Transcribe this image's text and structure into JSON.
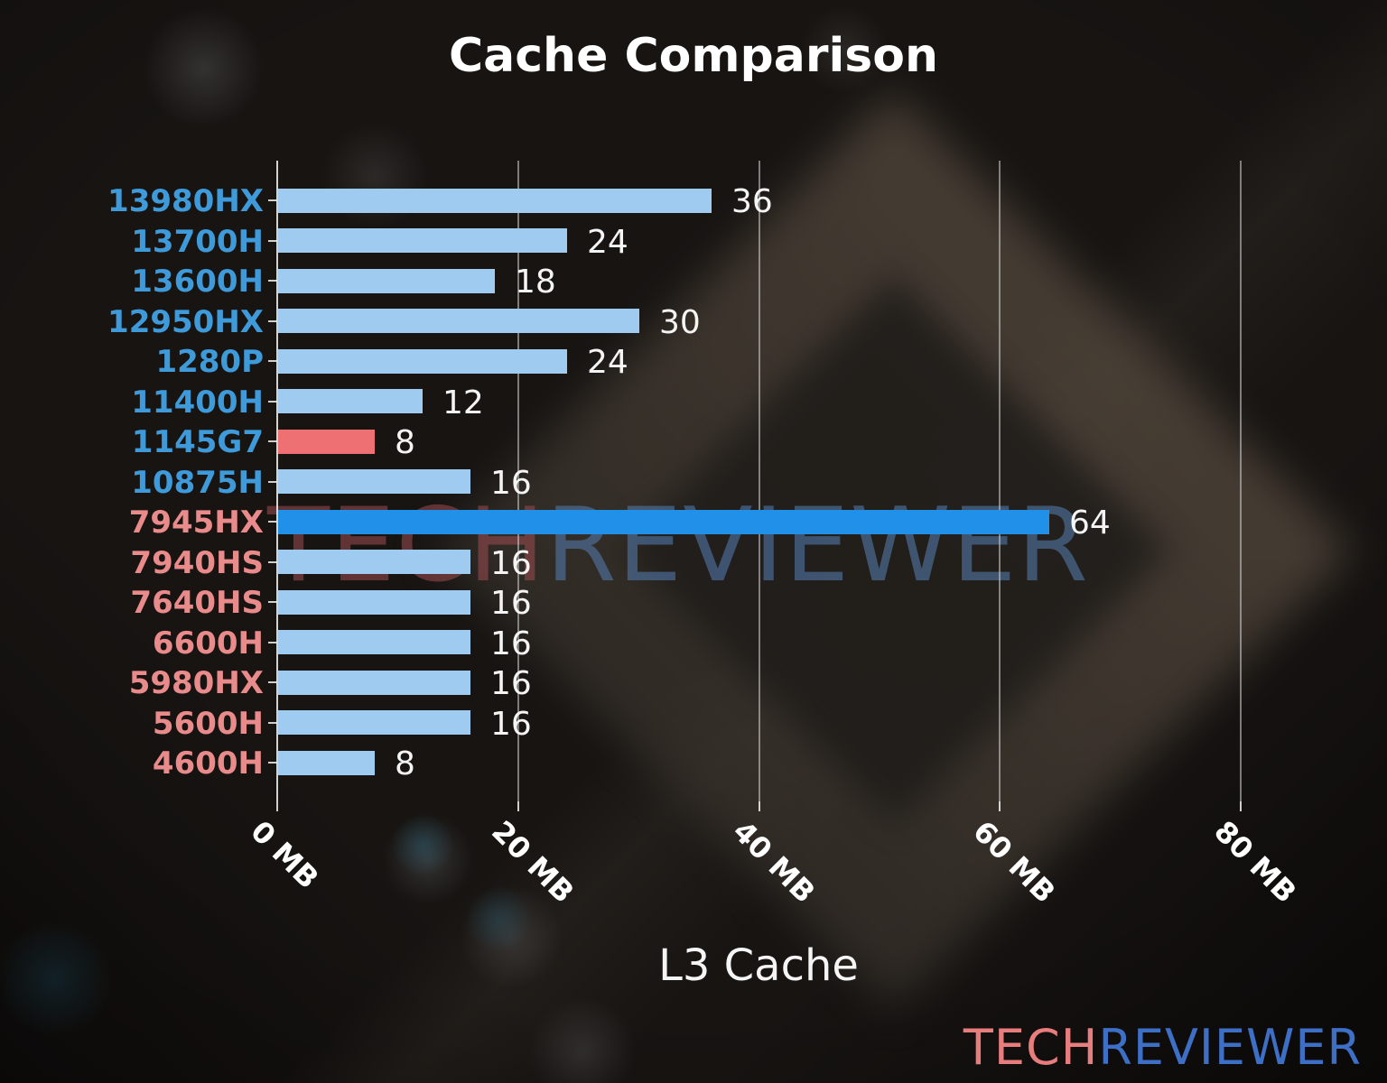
{
  "title": "Cache Comparison",
  "xaxis_title": "L3 Cache",
  "watermark": {
    "part1": "TECH",
    "part2": "REVIEWER"
  },
  "logo": {
    "part1": "TECH",
    "part2": "REVIEWER"
  },
  "colors": {
    "bar_normal": "#9fcbf0",
    "bar_highlight": "#2090e8",
    "bar_red": "#ee7072",
    "label_intel": "#3f9ad9",
    "label_amd": "#e98a8b",
    "value_text": "#f4f4f4",
    "grid": "rgba(212,212,212,0.55)"
  },
  "chart_data": {
    "type": "bar",
    "orientation": "horizontal",
    "title": "Cache Comparison",
    "xlabel": "L3 Cache",
    "unit": "MB",
    "grid": true,
    "legend": "none",
    "xlim": [
      0,
      85
    ],
    "x_tick_values": [
      0,
      20,
      40,
      60,
      80
    ],
    "x_tick_labels": [
      "0 MB",
      "20 MB",
      "40 MB",
      "60 MB",
      "80 MB"
    ],
    "categories": [
      "13980HX",
      "13700H",
      "13600H",
      "12950HX",
      "1280P",
      "11400H",
      "1145G7",
      "10875H",
      "7945HX",
      "7940HS",
      "7640HS",
      "6600H",
      "5980HX",
      "5600H",
      "4600H"
    ],
    "values": [
      36,
      24,
      18,
      30,
      24,
      12,
      8,
      16,
      64,
      16,
      16,
      16,
      16,
      16,
      8
    ],
    "bars": [
      {
        "label": "13980HX",
        "value": 36,
        "bar_color": "#9fcbf0",
        "label_color": "#3f9ad9"
      },
      {
        "label": "13700H",
        "value": 24,
        "bar_color": "#9fcbf0",
        "label_color": "#3f9ad9"
      },
      {
        "label": "13600H",
        "value": 18,
        "bar_color": "#9fcbf0",
        "label_color": "#3f9ad9"
      },
      {
        "label": "12950HX",
        "value": 30,
        "bar_color": "#9fcbf0",
        "label_color": "#3f9ad9"
      },
      {
        "label": "1280P",
        "value": 24,
        "bar_color": "#9fcbf0",
        "label_color": "#3f9ad9"
      },
      {
        "label": "11400H",
        "value": 12,
        "bar_color": "#9fcbf0",
        "label_color": "#3f9ad9"
      },
      {
        "label": "1145G7",
        "value": 8,
        "bar_color": "#ee7072",
        "label_color": "#3f9ad9"
      },
      {
        "label": "10875H",
        "value": 16,
        "bar_color": "#9fcbf0",
        "label_color": "#3f9ad9"
      },
      {
        "label": "7945HX",
        "value": 64,
        "bar_color": "#2090e8",
        "label_color": "#e98a8b"
      },
      {
        "label": "7940HS",
        "value": 16,
        "bar_color": "#9fcbf0",
        "label_color": "#e98a8b"
      },
      {
        "label": "7640HS",
        "value": 16,
        "bar_color": "#9fcbf0",
        "label_color": "#e98a8b"
      },
      {
        "label": "6600H",
        "value": 16,
        "bar_color": "#9fcbf0",
        "label_color": "#e98a8b"
      },
      {
        "label": "5980HX",
        "value": 16,
        "bar_color": "#9fcbf0",
        "label_color": "#e98a8b"
      },
      {
        "label": "5600H",
        "value": 16,
        "bar_color": "#9fcbf0",
        "label_color": "#e98a8b"
      },
      {
        "label": "4600H",
        "value": 8,
        "bar_color": "#9fcbf0",
        "label_color": "#e98a8b"
      }
    ]
  }
}
